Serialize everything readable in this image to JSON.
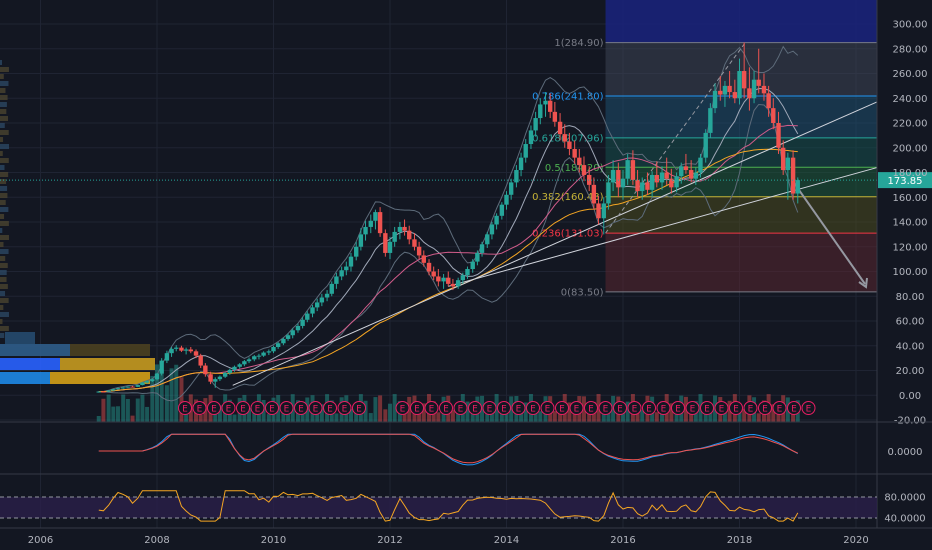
{
  "chart_data": [
    {
      "type": "candlestick",
      "panel": "price",
      "x_ticks": [
        "2006",
        "2008",
        "2010",
        "2012",
        "2014",
        "2016",
        "2018",
        "2020"
      ],
      "y_ticks": [
        "300.00",
        "280.00",
        "260.00",
        "240.00",
        "220.00",
        "200.00",
        "180.00",
        "160.00",
        "140.00",
        "120.00",
        "100.00",
        "80.00",
        "60.00",
        "40.00",
        "20.00",
        "0.00",
        "-20.00"
      ],
      "ylim": [
        -20,
        310
      ],
      "xlim": [
        2005.3,
        2020.3
      ],
      "current_price": "173.85",
      "current_price_value": 173.85,
      "fib_levels": [
        {
          "label": "1(284.90)",
          "value": 284.9,
          "color": "#787b86"
        },
        {
          "label": "0.786(241.80)",
          "value": 241.8,
          "color": "#2196f3"
        },
        {
          "label": "0.618(207.96)",
          "value": 207.96,
          "color": "#26a69a"
        },
        {
          "label": "0.5(184.20)",
          "value": 184.2,
          "color": "#4caf50"
        },
        {
          "label": "0.382(160.43)",
          "value": 160.43,
          "color": "#c6b336"
        },
        {
          "label": "0.236(131.03)",
          "value": 131.03,
          "color": "#f23645"
        },
        {
          "label": "0(83.50)",
          "value": 83.5,
          "color": "#787b86"
        }
      ],
      "fib_zone_colors": [
        "#3d4354",
        "#1e4f6e",
        "#164e4d",
        "#1d5a3a",
        "#4a4a1e",
        "#5a2630"
      ],
      "earnings_marker": "E",
      "earnings_count": 44,
      "candles": [
        [
          2007.0,
          2.5,
          3.2,
          2.1,
          3.0
        ],
        [
          2007.08,
          3.0,
          3.4,
          2.6,
          2.9
        ],
        [
          2007.17,
          2.9,
          4.0,
          2.7,
          3.8
        ],
        [
          2007.25,
          3.8,
          5.1,
          3.6,
          4.9
        ],
        [
          2007.33,
          4.9,
          6.0,
          4.6,
          5.7
        ],
        [
          2007.42,
          5.7,
          6.5,
          5.2,
          6.3
        ],
        [
          2007.5,
          6.3,
          7.2,
          6.0,
          7.0
        ],
        [
          2007.58,
          7.0,
          7.6,
          6.4,
          6.8
        ],
        [
          2007.67,
          6.8,
          8.4,
          6.6,
          8.2
        ],
        [
          2007.75,
          8.2,
          10.6,
          8.0,
          10.3
        ],
        [
          2007.83,
          10.3,
          12.0,
          9.5,
          11.4
        ],
        [
          2007.92,
          11.4,
          13.5,
          10.8,
          12.9
        ],
        [
          2008.0,
          12.9,
          18.0,
          12.0,
          17.5
        ],
        [
          2008.08,
          17.5,
          30.0,
          16.0,
          28.0
        ],
        [
          2008.17,
          28.0,
          36.0,
          26.0,
          34.0
        ],
        [
          2008.25,
          34.0,
          39.0,
          31.0,
          37.5
        ],
        [
          2008.33,
          37.5,
          40.5,
          35.5,
          38.5
        ],
        [
          2008.42,
          38.5,
          40.0,
          35.0,
          36.0
        ],
        [
          2008.5,
          36.0,
          38.5,
          33.0,
          37.0
        ],
        [
          2008.58,
          37.0,
          39.0,
          34.0,
          35.5
        ],
        [
          2008.67,
          35.5,
          37.0,
          30.0,
          32.0
        ],
        [
          2008.75,
          32.0,
          33.5,
          22.0,
          24.0
        ],
        [
          2008.83,
          24.0,
          26.0,
          15.0,
          17.0
        ],
        [
          2008.92,
          17.0,
          19.0,
          9.0,
          11.0
        ],
        [
          2009.0,
          11.0,
          14.5,
          6.0,
          13.0
        ],
        [
          2009.08,
          13.0,
          16.0,
          11.5,
          15.0
        ],
        [
          2009.17,
          15.0,
          19.0,
          14.0,
          18.0
        ],
        [
          2009.25,
          18.0,
          21.5,
          16.5,
          20.5
        ],
        [
          2009.33,
          20.5,
          24.0,
          19.0,
          23.0
        ],
        [
          2009.42,
          23.0,
          26.0,
          21.5,
          25.0
        ],
        [
          2009.5,
          25.0,
          28.5,
          23.5,
          27.5
        ],
        [
          2009.58,
          27.5,
          30.5,
          26.0,
          29.0
        ],
        [
          2009.67,
          29.0,
          32.5,
          27.5,
          31.5
        ],
        [
          2009.75,
          31.5,
          33.5,
          29.0,
          32.0
        ],
        [
          2009.83,
          32.0,
          35.5,
          31.0,
          34.5
        ],
        [
          2009.92,
          34.5,
          37.0,
          32.5,
          35.5
        ],
        [
          2010.0,
          35.5,
          40.0,
          34.0,
          39.0
        ],
        [
          2010.08,
          39.0,
          43.0,
          37.5,
          42.0
        ],
        [
          2010.17,
          42.0,
          46.5,
          40.5,
          45.5
        ],
        [
          2010.25,
          45.5,
          50.0,
          44.0,
          48.5
        ],
        [
          2010.33,
          48.5,
          54.0,
          46.0,
          52.5
        ],
        [
          2010.42,
          52.5,
          58.0,
          50.5,
          56.0
        ],
        [
          2010.5,
          56.0,
          63.0,
          54.0,
          61.0
        ],
        [
          2010.58,
          61.0,
          68.0,
          59.0,
          66.0
        ],
        [
          2010.67,
          66.0,
          73.0,
          63.0,
          71.0
        ],
        [
          2010.75,
          71.0,
          78.0,
          68.0,
          75.0
        ],
        [
          2010.83,
          75.0,
          82.0,
          72.0,
          79.0
        ],
        [
          2010.92,
          79.0,
          85.0,
          76.0,
          82.0
        ],
        [
          2011.0,
          82.0,
          92.0,
          80.0,
          90.0
        ],
        [
          2011.08,
          90.0,
          99.0,
          86.0,
          96.0
        ],
        [
          2011.17,
          96.0,
          104.0,
          93.0,
          101.0
        ],
        [
          2011.25,
          101.0,
          108.0,
          97.0,
          104.0
        ],
        [
          2011.33,
          104.0,
          115.0,
          100.0,
          112.0
        ],
        [
          2011.42,
          112.0,
          124.0,
          109.0,
          120.0
        ],
        [
          2011.5,
          120.0,
          135.0,
          117.0,
          130.0
        ],
        [
          2011.58,
          130.0,
          141.0,
          125.0,
          136.0
        ],
        [
          2011.67,
          136.0,
          146.0,
          131.0,
          141.0
        ],
        [
          2011.75,
          141.0,
          150.0,
          134.0,
          148.0
        ],
        [
          2011.83,
          148.0,
          152.0,
          128.0,
          131.0
        ],
        [
          2011.92,
          131.0,
          134.0,
          112.0,
          115.0
        ],
        [
          2012.0,
          115.0,
          128.0,
          110.0,
          124.0
        ],
        [
          2012.08,
          124.0,
          136.0,
          120.0,
          132.0
        ],
        [
          2012.17,
          132.0,
          140.0,
          126.0,
          136.0
        ],
        [
          2012.25,
          136.0,
          142.0,
          129.0,
          133.0
        ],
        [
          2012.33,
          133.0,
          137.0,
          122.0,
          126.0
        ],
        [
          2012.42,
          126.0,
          131.0,
          117.0,
          120.0
        ],
        [
          2012.5,
          120.0,
          124.0,
          110.0,
          113.0
        ],
        [
          2012.58,
          113.0,
          117.0,
          104.0,
          107.0
        ],
        [
          2012.67,
          107.0,
          110.0,
          97.0,
          100.0
        ],
        [
          2012.75,
          100.0,
          104.0,
          93.0,
          96.0
        ],
        [
          2012.83,
          96.0,
          102.0,
          88.0,
          92.0
        ],
        [
          2012.92,
          92.0,
          98.0,
          86.0,
          95.0
        ],
        [
          2013.0,
          95.0,
          100.0,
          88.0,
          90.0
        ],
        [
          2013.08,
          90.0,
          94.0,
          85.0,
          88.0
        ],
        [
          2013.17,
          88.0,
          95.0,
          86.0,
          93.0
        ],
        [
          2013.25,
          93.0,
          99.0,
          90.0,
          97.0
        ],
        [
          2013.33,
          97.0,
          104.0,
          94.0,
          102.0
        ],
        [
          2013.42,
          102.0,
          110.0,
          99.0,
          108.0
        ],
        [
          2013.5,
          108.0,
          117.0,
          105.0,
          115.0
        ],
        [
          2013.58,
          115.0,
          124.0,
          112.0,
          122.0
        ],
        [
          2013.67,
          122.0,
          132.0,
          119.0,
          130.0
        ],
        [
          2013.75,
          130.0,
          140.0,
          126.0,
          138.0
        ],
        [
          2013.83,
          138.0,
          147.0,
          134.0,
          145.0
        ],
        [
          2013.92,
          145.0,
          156.0,
          142.0,
          154.0
        ],
        [
          2014.0,
          154.0,
          165.0,
          150.0,
          162.0
        ],
        [
          2014.08,
          162.0,
          175.0,
          158.0,
          172.0
        ],
        [
          2014.17,
          172.0,
          186.0,
          168.0,
          182.0
        ],
        [
          2014.25,
          182.0,
          196.0,
          177.0,
          192.0
        ],
        [
          2014.33,
          192.0,
          207.0,
          188.0,
          203.0
        ],
        [
          2014.42,
          203.0,
          218.0,
          199.0,
          214.0
        ],
        [
          2014.5,
          214.0,
          229.0,
          209.0,
          224.0
        ],
        [
          2014.58,
          224.0,
          240.0,
          219.0,
          235.0
        ],
        [
          2014.67,
          235.0,
          245.0,
          225.0,
          238.0
        ],
        [
          2014.75,
          238.0,
          244.0,
          224.0,
          229.0
        ],
        [
          2014.83,
          229.0,
          237.0,
          217.0,
          221.0
        ],
        [
          2014.92,
          221.0,
          228.0,
          206.0,
          211.0
        ],
        [
          2015.0,
          211.0,
          219.0,
          200.0,
          205.0
        ],
        [
          2015.08,
          205.0,
          212.0,
          194.0,
          199.0
        ],
        [
          2015.17,
          199.0,
          206.0,
          187.0,
          192.0
        ],
        [
          2015.25,
          192.0,
          199.0,
          180.0,
          186.0
        ],
        [
          2015.33,
          186.0,
          193.0,
          173.0,
          178.0
        ],
        [
          2015.42,
          178.0,
          185.0,
          165.0,
          170.0
        ],
        [
          2015.5,
          170.0,
          176.0,
          150.0,
          155.0
        ],
        [
          2015.58,
          155.0,
          161.0,
          138.0,
          143.0
        ],
        [
          2015.67,
          143.0,
          160.0,
          130.0,
          155.0
        ],
        [
          2015.75,
          155.0,
          178.0,
          150.0,
          172.0
        ],
        [
          2015.83,
          172.0,
          190.0,
          165.0,
          182.0
        ],
        [
          2015.92,
          182.0,
          188.0,
          160.0,
          168.0
        ],
        [
          2016.0,
          168.0,
          182.0,
          158.0,
          175.0
        ],
        [
          2016.08,
          175.0,
          195.0,
          170.0,
          190.0
        ],
        [
          2016.17,
          190.0,
          198.0,
          170.0,
          174.0
        ],
        [
          2016.25,
          174.0,
          182.0,
          160.0,
          165.0
        ],
        [
          2016.33,
          165.0,
          176.0,
          158.0,
          172.0
        ],
        [
          2016.42,
          172.0,
          180.0,
          162.0,
          166.0
        ],
        [
          2016.5,
          166.0,
          181.0,
          160.0,
          178.0
        ],
        [
          2016.58,
          178.0,
          189.0,
          168.0,
          172.0
        ],
        [
          2016.67,
          172.0,
          185.0,
          166.0,
          180.0
        ],
        [
          2016.75,
          180.0,
          192.0,
          170.0,
          175.0
        ],
        [
          2016.83,
          175.0,
          183.0,
          163.0,
          168.0
        ],
        [
          2016.92,
          168.0,
          180.0,
          164.0,
          177.0
        ],
        [
          2017.0,
          177.0,
          188.0,
          171.0,
          185.0
        ],
        [
          2017.08,
          185.0,
          195.0,
          179.0,
          182.0
        ],
        [
          2017.17,
          182.0,
          190.0,
          172.0,
          175.0
        ],
        [
          2017.25,
          175.0,
          184.0,
          170.0,
          180.0
        ],
        [
          2017.33,
          180.0,
          195.0,
          176.0,
          192.0
        ],
        [
          2017.42,
          192.0,
          215.0,
          188.0,
          212.0
        ],
        [
          2017.5,
          212.0,
          236.0,
          208.0,
          232.0
        ],
        [
          2017.58,
          232.0,
          252.0,
          228.0,
          246.0
        ],
        [
          2017.67,
          246.0,
          258.0,
          238.0,
          243.0
        ],
        [
          2017.75,
          243.0,
          254.0,
          233.0,
          250.0
        ],
        [
          2017.83,
          250.0,
          262.0,
          240.0,
          245.0
        ],
        [
          2017.92,
          245.0,
          255.0,
          236.0,
          240.0
        ],
        [
          2018.0,
          240.0,
          272.0,
          235.0,
          262.0
        ],
        [
          2018.08,
          262.0,
          285.0,
          240.0,
          248.0
        ],
        [
          2018.17,
          248.0,
          265.0,
          230.0,
          240.0
        ],
        [
          2018.25,
          240.0,
          262.0,
          236.0,
          255.0
        ],
        [
          2018.33,
          255.0,
          280.0,
          244.0,
          250.0
        ],
        [
          2018.42,
          250.0,
          260.0,
          238.0,
          244.0
        ],
        [
          2018.5,
          244.0,
          250.0,
          225.0,
          232.0
        ],
        [
          2018.58,
          232.0,
          240.0,
          215.0,
          220.0
        ],
        [
          2018.67,
          220.0,
          229.0,
          195.0,
          200.0
        ],
        [
          2018.75,
          200.0,
          206.0,
          178.0,
          182.0
        ],
        [
          2018.83,
          182.0,
          196.0,
          158.0,
          192.0
        ],
        [
          2018.92,
          192.0,
          198.0,
          158.0,
          163.0
        ],
        [
          2019.0,
          163.0,
          176.0,
          155.0,
          173.85
        ]
      ]
    },
    {
      "type": "line",
      "panel": "oscillator",
      "y_ticks": [
        "0.0000"
      ],
      "note": "MACD-style oscillator"
    },
    {
      "type": "line",
      "panel": "rsi",
      "y_ticks": [
        "80.0000",
        "40.0000"
      ],
      "note": "RSI-style oscillator"
    }
  ]
}
